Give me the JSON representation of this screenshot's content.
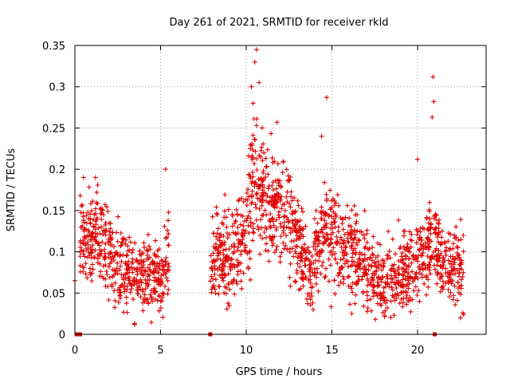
{
  "chart_data": {
    "type": "scatter",
    "title": "Day 261 of 2021, SRMTID for receiver rkld",
    "xlabel": "GPS time / hours",
    "ylabel": "SRMTID / TECUs",
    "xlim": [
      0,
      24
    ],
    "ylim": [
      0,
      0.35
    ],
    "xticks": [
      0,
      5,
      10,
      15,
      20
    ],
    "yticks": [
      0,
      0.05,
      0.1,
      0.15,
      0.2,
      0.25,
      0.3,
      0.35
    ],
    "xtick_labels": [
      "0",
      "5",
      "10",
      "15",
      "20"
    ],
    "ytick_labels": [
      "0",
      "0.05",
      "0.1",
      "0.15",
      "0.2",
      "0.25",
      "0.3",
      "0.35"
    ],
    "grid": true,
    "legend": "none",
    "marker": "+",
    "color": "#e00000",
    "zero_markers": {
      "marker": "square",
      "points": [
        [
          0.1,
          0
        ],
        [
          0.3,
          0
        ],
        [
          7.9,
          0
        ],
        [
          21.0,
          0
        ]
      ]
    },
    "series": [
      {
        "name": "SRMTID",
        "segments": [
          {
            "t_start": 0.3,
            "t_end": 5.5,
            "center": [
              [
                0.3,
                0.11
              ],
              [
                1.3,
                0.12
              ],
              [
                2.0,
                0.1
              ],
              [
                3.0,
                0.075
              ],
              [
                4.0,
                0.07
              ],
              [
                5.0,
                0.065
              ],
              [
                5.5,
                0.1
              ]
            ],
            "spread": 0.022
          },
          {
            "t_start": 7.9,
            "t_end": 22.7,
            "center": [
              [
                7.9,
                0.09
              ],
              [
                9.0,
                0.095
              ],
              [
                10.0,
                0.12
              ],
              [
                10.5,
                0.2
              ],
              [
                11.0,
                0.17
              ],
              [
                12.0,
                0.15
              ],
              [
                12.5,
                0.14
              ],
              [
                13.0,
                0.11
              ],
              [
                13.8,
                0.07
              ],
              [
                14.5,
                0.13
              ],
              [
                15.5,
                0.11
              ],
              [
                16.5,
                0.1
              ],
              [
                17.0,
                0.075
              ],
              [
                18.0,
                0.06
              ],
              [
                19.0,
                0.07
              ],
              [
                19.5,
                0.075
              ],
              [
                20.5,
                0.1
              ],
              [
                21.0,
                0.12
              ],
              [
                21.5,
                0.085
              ],
              [
                22.0,
                0.08
              ],
              [
                22.7,
                0.085
              ]
            ],
            "spread": 0.024
          }
        ],
        "outliers": [
          [
            0.0,
            0.065
          ],
          [
            0.5,
            0.19
          ],
          [
            1.2,
            0.19
          ],
          [
            5.3,
            0.2
          ],
          [
            10.3,
            0.3
          ],
          [
            10.6,
            0.345
          ],
          [
            10.75,
            0.305
          ],
          [
            10.5,
            0.33
          ],
          [
            10.4,
            0.28
          ],
          [
            11.8,
            0.257
          ],
          [
            14.7,
            0.287
          ],
          [
            14.4,
            0.24
          ],
          [
            20.0,
            0.212
          ],
          [
            20.9,
            0.312
          ],
          [
            20.95,
            0.282
          ],
          [
            20.85,
            0.263
          ],
          [
            22.5,
            0.02
          ],
          [
            13.9,
            0.03
          ]
        ]
      }
    ]
  }
}
